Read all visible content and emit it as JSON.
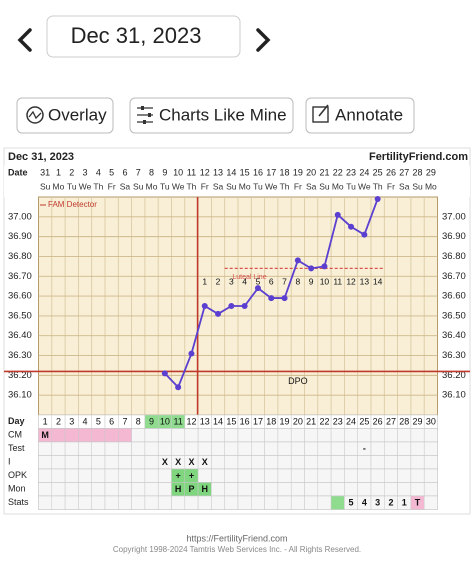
{
  "nav": {
    "date": "Dec 31, 2023"
  },
  "buttons": [
    "Overlay",
    "Charts Like Mine",
    "Annotate"
  ],
  "footer": {
    "url": "https://FertilityFriend.com",
    "copyright": "Copyright 1998-2024 Tamtris Web Services Inc. - All Rights Reserved."
  },
  "chart_data": {
    "type": "line",
    "title": "Dec 31, 2023",
    "brand": "FertilityFriend.com",
    "date_label": "Date",
    "dates": [
      31,
      1,
      2,
      3,
      4,
      5,
      6,
      7,
      8,
      9,
      10,
      11,
      12,
      13,
      14,
      15,
      16,
      17,
      18,
      19,
      20,
      21,
      22,
      23,
      24,
      25,
      26,
      27,
      28,
      29
    ],
    "weekdays": [
      "Su",
      "Mo",
      "Tu",
      "We",
      "Th",
      "Fr",
      "Sa",
      "Su",
      "Mo",
      "Tu",
      "We",
      "Th",
      "Fr",
      "Sa",
      "Su",
      "Mo",
      "Tu",
      "We",
      "Th",
      "Fr",
      "Sa",
      "Su",
      "Mo",
      "Tu",
      "We",
      "Th",
      "Fr",
      "Sa",
      "Su",
      "Mo"
    ],
    "x": [
      1,
      2,
      3,
      4,
      5,
      6,
      7,
      8,
      9,
      10,
      11,
      12,
      13,
      14,
      15,
      16,
      17,
      18,
      19,
      20,
      21,
      22,
      23,
      24,
      25,
      26,
      27,
      28,
      29,
      30
    ],
    "series": [
      {
        "name": "Temperature",
        "color": "#5b3fd0",
        "values": [
          null,
          null,
          null,
          null,
          null,
          null,
          null,
          null,
          null,
          36.21,
          36.14,
          36.31,
          36.55,
          36.51,
          36.55,
          36.55,
          36.64,
          36.59,
          36.59,
          36.78,
          36.74,
          36.75,
          37.01,
          36.95,
          36.91,
          37.09,
          null,
          null,
          null,
          null
        ]
      }
    ],
    "ylim": [
      36.0,
      37.1
    ],
    "yticks": [
      {
        "value": 36.1,
        "label": "36.10"
      },
      {
        "value": 36.2,
        "label": "36.20"
      },
      {
        "value": 36.3,
        "label": "36.30"
      },
      {
        "value": 36.4,
        "label": "36.40"
      },
      {
        "value": 36.5,
        "label": "36.50"
      },
      {
        "value": 36.6,
        "label": "36.60"
      },
      {
        "value": 36.7,
        "label": "36.70"
      },
      {
        "value": 36.8,
        "label": "36.80"
      },
      {
        "value": 36.9,
        "label": "36.90"
      },
      {
        "value": 37.0,
        "label": "37.00"
      }
    ],
    "grid": true,
    "coverline": {
      "value": 36.22,
      "color": "#c0392b"
    },
    "ovulation_day": 12,
    "luteal_line": {
      "label": "Luteal Line",
      "value": 36.74,
      "from": 15,
      "to": 27,
      "color": "#d9534f"
    },
    "fam_label": "FAM Detector",
    "dpo": {
      "label": "DPO",
      "label_day": 20,
      "start_day": 13,
      "numbers": [
        1,
        2,
        3,
        4,
        5,
        6,
        7,
        8,
        9,
        10,
        11,
        12,
        13,
        14
      ]
    },
    "rows": [
      {
        "label": "Day",
        "cells": [
          1,
          2,
          3,
          4,
          5,
          6,
          7,
          8,
          9,
          10,
          11,
          12,
          13,
          14,
          15,
          16,
          17,
          18,
          19,
          20,
          21,
          22,
          23,
          24,
          25,
          26,
          27,
          28,
          29,
          30
        ],
        "fills": [
          null,
          null,
          null,
          null,
          null,
          null,
          null,
          null,
          "#8fdc8f",
          "#8fdc8f",
          "#8fdc8f",
          null,
          null,
          null,
          null,
          null,
          null,
          null,
          null,
          null,
          null,
          null,
          null,
          null,
          null,
          null,
          null,
          null,
          null,
          null
        ]
      },
      {
        "label": "CM",
        "cells": [
          "M",
          null,
          null,
          null,
          null,
          null,
          null,
          null,
          null,
          null,
          null,
          null,
          null,
          null,
          null,
          null,
          null,
          null,
          null,
          null,
          null,
          null,
          null,
          null,
          null,
          null,
          null,
          null,
          null,
          null
        ],
        "fills": [
          "#f4b8d2",
          "#f4b8d2",
          "#f4b8d2",
          "#f4b8d2",
          "#f4b8d2",
          "#f4b8d2",
          "#f4b8d2",
          null,
          null,
          null,
          null,
          null,
          null,
          null,
          null,
          null,
          null,
          null,
          null,
          null,
          null,
          null,
          null,
          null,
          null,
          null,
          null,
          null,
          null,
          null
        ]
      },
      {
        "label": "Test",
        "cells": [
          null,
          null,
          null,
          null,
          null,
          null,
          null,
          null,
          null,
          null,
          null,
          null,
          null,
          null,
          null,
          null,
          null,
          null,
          null,
          null,
          null,
          null,
          null,
          null,
          "-",
          null,
          null,
          null,
          null,
          null
        ],
        "fills": [
          null,
          null,
          null,
          null,
          null,
          null,
          null,
          null,
          null,
          null,
          null,
          null,
          null,
          null,
          null,
          null,
          null,
          null,
          null,
          null,
          null,
          null,
          null,
          null,
          null,
          null,
          null,
          null,
          null,
          null
        ]
      },
      {
        "label": "I",
        "cells": [
          null,
          null,
          null,
          null,
          null,
          null,
          null,
          null,
          null,
          "X",
          "X",
          "X",
          "X",
          null,
          null,
          null,
          null,
          null,
          null,
          null,
          null,
          null,
          null,
          null,
          null,
          null,
          null,
          null,
          null,
          null
        ],
        "fills": [
          null,
          null,
          null,
          null,
          null,
          null,
          null,
          null,
          null,
          null,
          null,
          null,
          null,
          null,
          null,
          null,
          null,
          null,
          null,
          null,
          null,
          null,
          null,
          null,
          null,
          null,
          null,
          null,
          null,
          null
        ]
      },
      {
        "label": "OPK",
        "cells": [
          null,
          null,
          null,
          null,
          null,
          null,
          null,
          null,
          null,
          null,
          "+",
          "+",
          null,
          null,
          null,
          null,
          null,
          null,
          null,
          null,
          null,
          null,
          null,
          null,
          null,
          null,
          null,
          null,
          null,
          null
        ],
        "fills": [
          null,
          null,
          null,
          null,
          null,
          null,
          null,
          null,
          null,
          null,
          "#7fd67f",
          "#7fd67f",
          null,
          null,
          null,
          null,
          null,
          null,
          null,
          null,
          null,
          null,
          null,
          null,
          null,
          null,
          null,
          null,
          null,
          null
        ]
      },
      {
        "label": "Mon",
        "cells": [
          null,
          null,
          null,
          null,
          null,
          null,
          null,
          null,
          null,
          null,
          "H",
          "P",
          "H",
          null,
          null,
          null,
          null,
          null,
          null,
          null,
          null,
          null,
          null,
          null,
          null,
          null,
          null,
          null,
          null,
          null
        ],
        "fills": [
          null,
          null,
          null,
          null,
          null,
          null,
          null,
          null,
          null,
          null,
          "#7fd67f",
          "#7fd67f",
          "#7fd67f",
          null,
          null,
          null,
          null,
          null,
          null,
          null,
          null,
          null,
          null,
          null,
          null,
          null,
          null,
          null,
          null,
          null
        ]
      },
      {
        "label": "Stats",
        "cells": [
          null,
          null,
          null,
          null,
          null,
          null,
          null,
          null,
          null,
          null,
          null,
          null,
          null,
          null,
          null,
          null,
          null,
          null,
          null,
          null,
          null,
          null,
          null,
          5,
          4,
          3,
          2,
          1,
          "T",
          null
        ],
        "fills": [
          null,
          null,
          null,
          null,
          null,
          null,
          null,
          null,
          null,
          null,
          null,
          null,
          null,
          null,
          null,
          null,
          null,
          null,
          null,
          null,
          null,
          null,
          "#8fdc8f",
          null,
          null,
          null,
          null,
          null,
          "#f4b8d2",
          null
        ]
      }
    ]
  }
}
